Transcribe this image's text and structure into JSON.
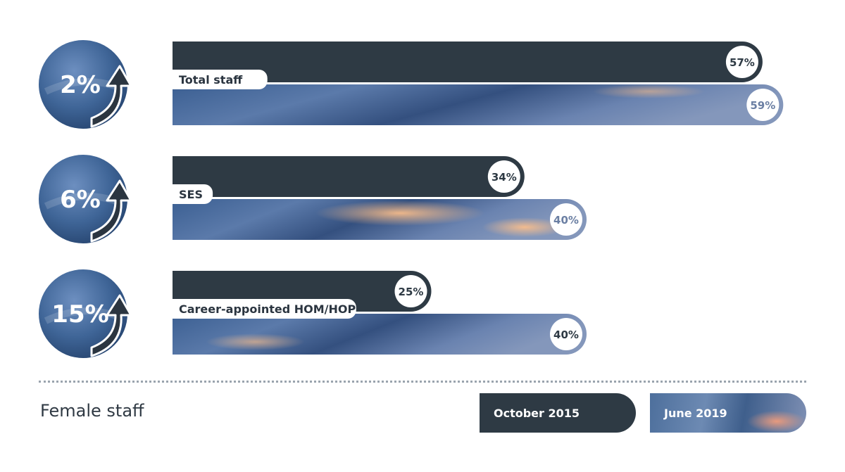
{
  "chart_data": {
    "type": "bar",
    "categories": [
      "Total staff",
      "SES",
      "Career-appointed HOM/HOP"
    ],
    "series": [
      {
        "name": "October 2015",
        "values": [
          57,
          34,
          25
        ]
      },
      {
        "name": "June 2019",
        "values": [
          59,
          40,
          40
        ]
      }
    ],
    "value_labels": {
      "October 2015": [
        "57%",
        "34%",
        "25%"
      ],
      "June 2019": [
        "59%",
        "40%",
        "40%"
      ]
    },
    "increase_labels": [
      "2%",
      "6%",
      "15%"
    ],
    "caption": "Female staff",
    "legend_position": "bottom-right",
    "xlim": [
      0,
      100
    ],
    "colors": {
      "october_2015": "#2e3a44",
      "june_2019": "#4a6a98",
      "label_text": "#2e3a44",
      "june_label_text": "#6b7fa3"
    }
  },
  "legend": {
    "october": "October 2015",
    "june": "June 2019"
  }
}
